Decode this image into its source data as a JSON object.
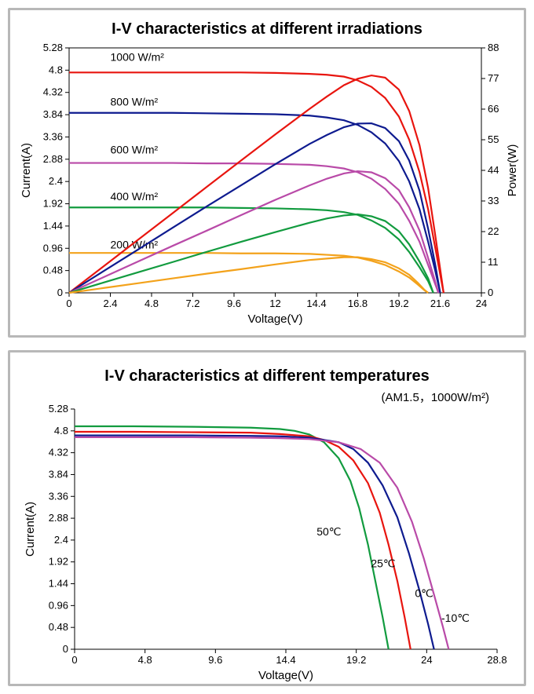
{
  "chart1": {
    "type": "line",
    "title": "I-V characteristics at different irradiations",
    "title_fontsize": 20,
    "background_color": "#ffffff",
    "border_color": "#b8b8b8",
    "axis_color": "#000000",
    "text_color": "#000000",
    "line_width": 2.2,
    "x_axis": {
      "label": "Voltage(V)",
      "min": 0,
      "max": 24,
      "ticks": [
        0,
        2.4,
        4.8,
        7.2,
        9.6,
        12,
        14.4,
        16.8,
        19.2,
        21.6,
        24
      ],
      "label_fontsize": 15,
      "tick_fontsize": 13
    },
    "y_axis_left": {
      "label": "Current(A)",
      "min": 0,
      "max": 5.28,
      "ticks": [
        0,
        0.48,
        0.96,
        1.44,
        1.92,
        2.4,
        2.88,
        3.36,
        3.84,
        4.32,
        4.8,
        5.28
      ],
      "label_fontsize": 15,
      "tick_fontsize": 13
    },
    "y_axis_right": {
      "label": "Power(W)",
      "min": 0,
      "max": 88,
      "ticks": [
        0,
        11,
        22,
        33,
        44,
        55,
        66,
        77,
        88
      ],
      "label_fontsize": 15,
      "tick_fontsize": 13
    },
    "series": [
      {
        "name": "iv-1000",
        "label": "1000 W/m²",
        "label_xy": [
          2.4,
          5.0
        ],
        "color": "#e8150f",
        "axis": "left",
        "data": [
          [
            0,
            4.75
          ],
          [
            2,
            4.75
          ],
          [
            4,
            4.75
          ],
          [
            6,
            4.75
          ],
          [
            8,
            4.75
          ],
          [
            10,
            4.75
          ],
          [
            12,
            4.74
          ],
          [
            14,
            4.72
          ],
          [
            15,
            4.7
          ],
          [
            16,
            4.66
          ],
          [
            16.8,
            4.58
          ],
          [
            17.6,
            4.44
          ],
          [
            18.4,
            4.2
          ],
          [
            19.2,
            3.8
          ],
          [
            19.8,
            3.3
          ],
          [
            20.4,
            2.6
          ],
          [
            20.9,
            1.8
          ],
          [
            21.3,
            1.0
          ],
          [
            21.6,
            0.4
          ],
          [
            21.8,
            0
          ]
        ]
      },
      {
        "name": "iv-800",
        "label": "800 W/m²",
        "label_xy": [
          2.4,
          4.04
        ],
        "color": "#0e1b8f",
        "axis": "left",
        "data": [
          [
            0,
            3.88
          ],
          [
            2,
            3.88
          ],
          [
            4,
            3.88
          ],
          [
            6,
            3.88
          ],
          [
            8,
            3.87
          ],
          [
            10,
            3.86
          ],
          [
            12,
            3.85
          ],
          [
            14,
            3.82
          ],
          [
            15,
            3.78
          ],
          [
            16,
            3.72
          ],
          [
            16.8,
            3.62
          ],
          [
            17.6,
            3.46
          ],
          [
            18.4,
            3.22
          ],
          [
            19.2,
            2.84
          ],
          [
            19.8,
            2.4
          ],
          [
            20.4,
            1.8
          ],
          [
            20.9,
            1.1
          ],
          [
            21.3,
            0.5
          ],
          [
            21.6,
            0
          ]
        ]
      },
      {
        "name": "iv-600",
        "label": "600 W/m²",
        "label_xy": [
          2.4,
          3.0
        ],
        "color": "#b94aa8",
        "axis": "left",
        "data": [
          [
            0,
            2.8
          ],
          [
            2,
            2.8
          ],
          [
            4,
            2.8
          ],
          [
            6,
            2.8
          ],
          [
            8,
            2.79
          ],
          [
            10,
            2.79
          ],
          [
            12,
            2.78
          ],
          [
            14,
            2.76
          ],
          [
            15,
            2.73
          ],
          [
            16,
            2.68
          ],
          [
            16.8,
            2.6
          ],
          [
            17.6,
            2.46
          ],
          [
            18.4,
            2.24
          ],
          [
            19.2,
            1.92
          ],
          [
            19.8,
            1.55
          ],
          [
            20.4,
            1.1
          ],
          [
            20.9,
            0.6
          ],
          [
            21.3,
            0.2
          ],
          [
            21.5,
            0
          ]
        ]
      },
      {
        "name": "iv-400",
        "label": "400 W/m²",
        "label_xy": [
          2.4,
          2.0
        ],
        "color": "#129b3f",
        "axis": "left",
        "data": [
          [
            0,
            1.84
          ],
          [
            2,
            1.84
          ],
          [
            4,
            1.84
          ],
          [
            6,
            1.84
          ],
          [
            8,
            1.84
          ],
          [
            10,
            1.83
          ],
          [
            12,
            1.82
          ],
          [
            14,
            1.8
          ],
          [
            15,
            1.78
          ],
          [
            16,
            1.74
          ],
          [
            16.8,
            1.68
          ],
          [
            17.6,
            1.56
          ],
          [
            18.4,
            1.4
          ],
          [
            19.2,
            1.15
          ],
          [
            19.8,
            0.88
          ],
          [
            20.4,
            0.55
          ],
          [
            20.9,
            0.25
          ],
          [
            21.2,
            0
          ]
        ]
      },
      {
        "name": "iv-200",
        "label": "200 W/m²",
        "label_xy": [
          2.4,
          0.96
        ],
        "color": "#f3a21b",
        "axis": "left",
        "data": [
          [
            0,
            0.86
          ],
          [
            2,
            0.86
          ],
          [
            4,
            0.86
          ],
          [
            6,
            0.86
          ],
          [
            8,
            0.86
          ],
          [
            10,
            0.85
          ],
          [
            12,
            0.85
          ],
          [
            14,
            0.84
          ],
          [
            15,
            0.82
          ],
          [
            16,
            0.8
          ],
          [
            16.8,
            0.76
          ],
          [
            17.6,
            0.69
          ],
          [
            18.4,
            0.6
          ],
          [
            19.2,
            0.46
          ],
          [
            19.8,
            0.33
          ],
          [
            20.3,
            0.18
          ],
          [
            20.7,
            0.05
          ],
          [
            20.9,
            0
          ]
        ]
      },
      {
        "name": "pv-1000",
        "color": "#e8150f",
        "axis": "right",
        "data": [
          [
            0,
            0
          ],
          [
            2,
            9.5
          ],
          [
            4,
            19.0
          ],
          [
            6,
            28.5
          ],
          [
            8,
            38.0
          ],
          [
            10,
            47.5
          ],
          [
            12,
            56.9
          ],
          [
            14,
            66.1
          ],
          [
            15,
            70.5
          ],
          [
            16,
            74.6
          ],
          [
            16.8,
            76.9
          ],
          [
            17.6,
            78.1
          ],
          [
            18.4,
            77.3
          ],
          [
            19.2,
            73.0
          ],
          [
            19.8,
            65.3
          ],
          [
            20.4,
            53.0
          ],
          [
            20.9,
            37.6
          ],
          [
            21.3,
            21.3
          ],
          [
            21.6,
            8.6
          ],
          [
            21.8,
            0
          ]
        ]
      },
      {
        "name": "pv-800",
        "color": "#0e1b8f",
        "axis": "right",
        "data": [
          [
            0,
            0
          ],
          [
            2,
            7.76
          ],
          [
            4,
            15.5
          ],
          [
            6,
            23.3
          ],
          [
            8,
            31.0
          ],
          [
            10,
            38.6
          ],
          [
            12,
            46.2
          ],
          [
            14,
            53.5
          ],
          [
            15,
            56.7
          ],
          [
            16,
            59.5
          ],
          [
            16.8,
            60.8
          ],
          [
            17.6,
            60.9
          ],
          [
            18.4,
            59.2
          ],
          [
            19.2,
            54.5
          ],
          [
            19.8,
            47.5
          ],
          [
            20.4,
            36.7
          ],
          [
            20.9,
            23.0
          ],
          [
            21.3,
            10.6
          ],
          [
            21.6,
            0
          ]
        ]
      },
      {
        "name": "pv-600",
        "color": "#b94aa8",
        "axis": "right",
        "data": [
          [
            0,
            0
          ],
          [
            2,
            5.6
          ],
          [
            4,
            11.2
          ],
          [
            6,
            16.8
          ],
          [
            8,
            22.3
          ],
          [
            10,
            27.9
          ],
          [
            12,
            33.4
          ],
          [
            14,
            38.6
          ],
          [
            15,
            41.0
          ],
          [
            16,
            42.9
          ],
          [
            16.8,
            43.7
          ],
          [
            17.6,
            43.3
          ],
          [
            18.4,
            41.2
          ],
          [
            19.2,
            36.9
          ],
          [
            19.8,
            30.7
          ],
          [
            20.4,
            22.4
          ],
          [
            20.9,
            12.5
          ],
          [
            21.3,
            4.3
          ],
          [
            21.5,
            0
          ]
        ]
      },
      {
        "name": "pv-400",
        "color": "#129b3f",
        "axis": "right",
        "data": [
          [
            0,
            0
          ],
          [
            2,
            3.68
          ],
          [
            4,
            7.36
          ],
          [
            6,
            11.0
          ],
          [
            8,
            14.7
          ],
          [
            10,
            18.3
          ],
          [
            12,
            21.8
          ],
          [
            14,
            25.2
          ],
          [
            15,
            26.7
          ],
          [
            16,
            27.8
          ],
          [
            16.8,
            28.2
          ],
          [
            17.6,
            27.5
          ],
          [
            18.4,
            25.8
          ],
          [
            19.2,
            22.1
          ],
          [
            19.8,
            17.4
          ],
          [
            20.4,
            11.2
          ],
          [
            20.9,
            5.2
          ],
          [
            21.2,
            0
          ]
        ]
      },
      {
        "name": "pv-200",
        "color": "#f3a21b",
        "axis": "right",
        "data": [
          [
            0,
            0
          ],
          [
            2,
            1.72
          ],
          [
            4,
            3.44
          ],
          [
            6,
            5.16
          ],
          [
            8,
            6.88
          ],
          [
            10,
            8.5
          ],
          [
            12,
            10.2
          ],
          [
            14,
            11.8
          ],
          [
            15,
            12.3
          ],
          [
            16,
            12.8
          ],
          [
            16.8,
            12.8
          ],
          [
            17.6,
            12.1
          ],
          [
            18.4,
            11.0
          ],
          [
            19.2,
            8.8
          ],
          [
            19.8,
            6.5
          ],
          [
            20.3,
            3.6
          ],
          [
            20.7,
            1.0
          ],
          [
            20.9,
            0
          ]
        ]
      }
    ]
  },
  "chart2": {
    "type": "line",
    "title": "I-V characteristics at different temperatures",
    "title_fontsize": 20,
    "annotation": "(AM1.5，1000W/m²)",
    "annotation_fontsize": 15,
    "background_color": "#ffffff",
    "border_color": "#b8b8b8",
    "axis_color": "#000000",
    "text_color": "#000000",
    "line_width": 2.2,
    "x_axis": {
      "label": "Voltage(V)",
      "min": 0,
      "max": 28.8,
      "ticks": [
        0,
        4.8,
        9.6,
        14.4,
        19.2,
        24,
        28.8
      ],
      "label_fontsize": 15,
      "tick_fontsize": 13
    },
    "y_axis": {
      "label": "Current(A)",
      "min": 0,
      "max": 5.28,
      "ticks": [
        0,
        0.48,
        0.96,
        1.44,
        1.92,
        2.4,
        2.88,
        3.36,
        3.84,
        4.32,
        4.8,
        5.28
      ],
      "label_fontsize": 15,
      "tick_fontsize": 13
    },
    "series": [
      {
        "name": "t-50",
        "label": "50℃",
        "label_xy": [
          16.5,
          2.5
        ],
        "label_color": "#129b3f",
        "color": "#129b3f",
        "data": [
          [
            0,
            4.9
          ],
          [
            4,
            4.9
          ],
          [
            8,
            4.89
          ],
          [
            12,
            4.87
          ],
          [
            14,
            4.84
          ],
          [
            15,
            4.8
          ],
          [
            16,
            4.72
          ],
          [
            17,
            4.55
          ],
          [
            18,
            4.2
          ],
          [
            18.8,
            3.7
          ],
          [
            19.4,
            3.1
          ],
          [
            20.0,
            2.3
          ],
          [
            20.5,
            1.5
          ],
          [
            21.0,
            0.7
          ],
          [
            21.4,
            0
          ]
        ]
      },
      {
        "name": "t-25",
        "label": "25℃",
        "label_xy": [
          20.2,
          1.8
        ],
        "label_color": "#e8150f",
        "color": "#e8150f",
        "data": [
          [
            0,
            4.78
          ],
          [
            4,
            4.78
          ],
          [
            8,
            4.77
          ],
          [
            12,
            4.76
          ],
          [
            14,
            4.73
          ],
          [
            16,
            4.68
          ],
          [
            17,
            4.6
          ],
          [
            18,
            4.45
          ],
          [
            19,
            4.15
          ],
          [
            20,
            3.65
          ],
          [
            20.8,
            3.0
          ],
          [
            21.4,
            2.3
          ],
          [
            22.0,
            1.5
          ],
          [
            22.5,
            0.7
          ],
          [
            22.9,
            0
          ]
        ]
      },
      {
        "name": "t-0",
        "label": "0℃",
        "label_xy": [
          23.2,
          1.15
        ],
        "label_color": "#0e1b8f",
        "color": "#0e1b8f",
        "data": [
          [
            0,
            4.7
          ],
          [
            4,
            4.7
          ],
          [
            8,
            4.7
          ],
          [
            12,
            4.69
          ],
          [
            14,
            4.68
          ],
          [
            16,
            4.65
          ],
          [
            18,
            4.55
          ],
          [
            19,
            4.4
          ],
          [
            20,
            4.1
          ],
          [
            21,
            3.6
          ],
          [
            22,
            2.9
          ],
          [
            22.8,
            2.1
          ],
          [
            23.5,
            1.3
          ],
          [
            24.1,
            0.55
          ],
          [
            24.5,
            0
          ]
        ]
      },
      {
        "name": "t-m10",
        "label": "-10℃",
        "label_xy": [
          25.0,
          0.6
        ],
        "label_color": "#b94aa8",
        "color": "#b94aa8",
        "data": [
          [
            0,
            4.66
          ],
          [
            4,
            4.66
          ],
          [
            8,
            4.66
          ],
          [
            12,
            4.65
          ],
          [
            14,
            4.64
          ],
          [
            16,
            4.62
          ],
          [
            18,
            4.55
          ],
          [
            19.5,
            4.4
          ],
          [
            20.8,
            4.1
          ],
          [
            22,
            3.55
          ],
          [
            23,
            2.8
          ],
          [
            23.8,
            2.0
          ],
          [
            24.5,
            1.2
          ],
          [
            25.1,
            0.5
          ],
          [
            25.5,
            0
          ]
        ]
      }
    ]
  }
}
